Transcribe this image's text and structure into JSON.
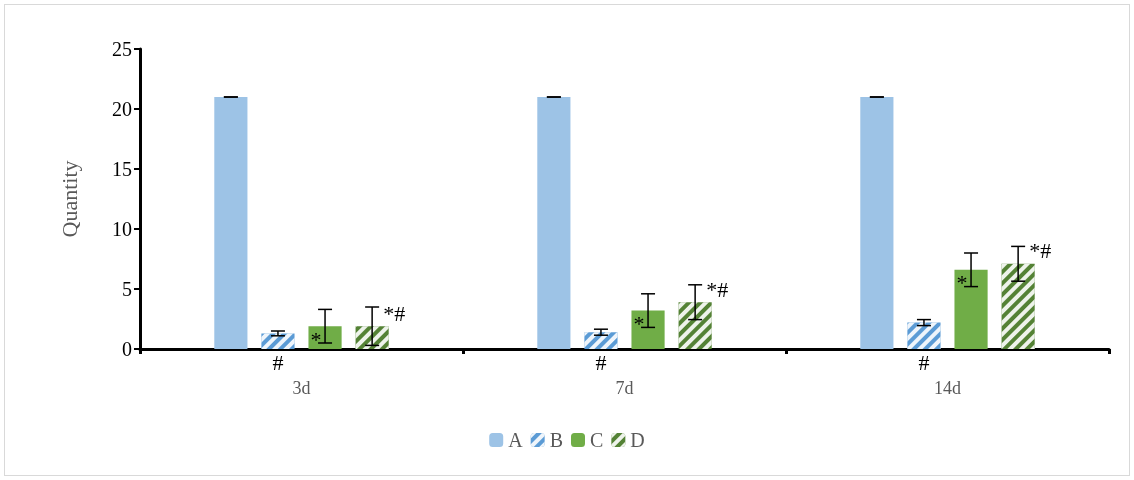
{
  "chart_data": {
    "type": "bar",
    "ylabel": "Quantity",
    "categories": [
      "3d",
      "7d",
      "14d"
    ],
    "ylim": [
      0,
      25
    ],
    "yticks": [
      0,
      5,
      10,
      15,
      20,
      25
    ],
    "grid": false,
    "legend": "bottom",
    "series": [
      {
        "name": "A",
        "color": "#9dc3e6",
        "values": [
          21,
          21,
          21
        ],
        "errors": [
          0,
          0,
          0
        ]
      },
      {
        "name": "B",
        "color": "#5b9bd5",
        "values": [
          1.3,
          1.4,
          2.2
        ],
        "errors": [
          0.2,
          0.25,
          0.25
        ],
        "value_labels": [
          "#",
          "#",
          "#"
        ]
      },
      {
        "name": "C",
        "color": "#70ad47",
        "values": [
          1.9,
          3.2,
          6.6
        ],
        "errors": [
          1.4,
          1.4,
          1.4
        ],
        "value_labels": [
          "*",
          "*",
          "*"
        ]
      },
      {
        "name": "D",
        "color": "#548235",
        "values": [
          1.9,
          3.9,
          7.1
        ],
        "errors": [
          1.6,
          1.45,
          1.45
        ],
        "value_labels": [
          "*#",
          "*#",
          "*#"
        ]
      }
    ]
  }
}
